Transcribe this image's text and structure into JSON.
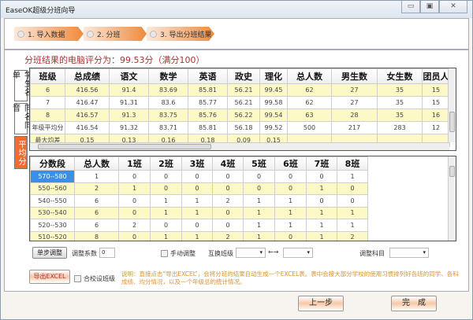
{
  "window": {
    "title": "EaseOK超级分班向导",
    "controls": [
      "▭",
      "▣",
      "✕"
    ]
  },
  "steps": [
    {
      "label": "1. 导入数据"
    },
    {
      "label": "2. 分班"
    },
    {
      "label": "3. 导出分班结果"
    }
  ],
  "score_text": "分班结果的电脑评分为：99.53分（满分100）",
  "tabs": [
    {
      "label": "学生名单"
    },
    {
      "label": "同名同音"
    },
    {
      "label": "平均分",
      "active": true
    }
  ],
  "avg_table": {
    "headers": [
      "班级",
      "总成绩",
      "语文",
      "数学",
      "英语",
      "政史",
      "理化",
      "总人数",
      "男生数",
      "女生数",
      "团员人"
    ],
    "rows": [
      [
        "6",
        "416.56",
        "91.4",
        "83.69",
        "85.81",
        "56.21",
        "99.45",
        "62",
        "27",
        "35",
        "15"
      ],
      [
        "7",
        "416.47",
        "91.31",
        "83.6",
        "85.77",
        "56.21",
        "99.58",
        "62",
        "27",
        "35",
        "15"
      ],
      [
        "8",
        "416.57",
        "91.3",
        "83.75",
        "85.76",
        "56.22",
        "99.54",
        "63",
        "28",
        "35",
        "16"
      ],
      [
        "年级平均分",
        "416.54",
        "91.32",
        "83.71",
        "85.81",
        "56.18",
        "99.52",
        "500",
        "217",
        "283",
        "12"
      ],
      [
        "最大均差",
        "0.15",
        "0.13",
        "0.16",
        "0.18",
        "0.09",
        "0.15",
        "",
        "",
        "",
        ""
      ]
    ]
  },
  "dist_table": {
    "headers": [
      "分数段",
      "总人数",
      "1班",
      "2班",
      "3班",
      "4班",
      "5班",
      "6班",
      "7班",
      "8班"
    ],
    "rows": [
      [
        "570--580",
        "1",
        "0",
        "0",
        "0",
        "0",
        "0",
        "0",
        "0",
        "1"
      ],
      [
        "550--560",
        "2",
        "1",
        "0",
        "0",
        "0",
        "0",
        "0",
        "1",
        "0"
      ],
      [
        "540--550",
        "6",
        "0",
        "1",
        "1",
        "2",
        "1",
        "1",
        "0",
        "0"
      ],
      [
        "530--540",
        "6",
        "0",
        "1",
        "1",
        "0",
        "1",
        "1",
        "1",
        "1"
      ],
      [
        "520--530",
        "6",
        "2",
        "0",
        "0",
        "0",
        "1",
        "1",
        "1",
        "1"
      ],
      [
        "510--520",
        "8",
        "0",
        "1",
        "1",
        "2",
        "1",
        "0",
        "1",
        "2"
      ]
    ]
  },
  "controls": {
    "step_adjust": "单步调整",
    "coef_label": "调整系数",
    "coef_value": "0",
    "manual_adjust": "手动调整",
    "swap_label": "互换班级",
    "swap_arrow": "←→",
    "subject_label": "调整科目",
    "export": "导出EXCEL",
    "merge_label": "合校设班级",
    "note": "说明：直接点击“导出EXCEL”，会将分班的结果自动生成一个EXCEL表。表中会按大部分学校的使用习惯排列好各班的同学、各科成绩、均分情况，以及一个年级总的统计情况。"
  },
  "footer": {
    "prev": "上一步",
    "finish": "完　成"
  }
}
